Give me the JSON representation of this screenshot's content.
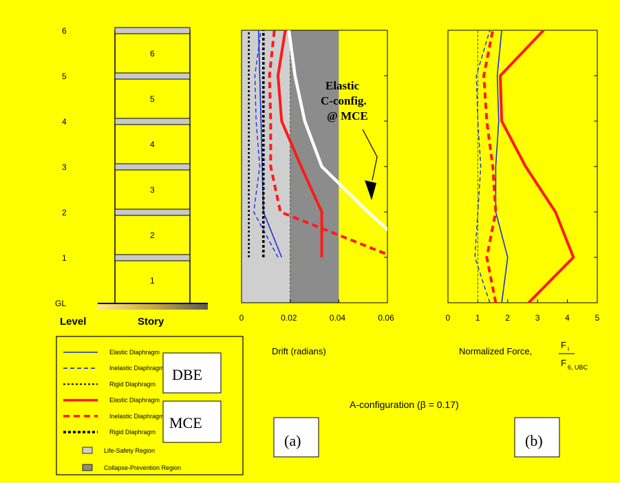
{
  "figure": {
    "caption": "A-configuration (β = 0.17)",
    "panel_a_label": "(a)",
    "panel_b_label": "(b)",
    "annotation": [
      "Elastic",
      "C-config.",
      "@ MCE"
    ]
  },
  "building": {
    "level_labels": [
      "GL",
      "1",
      "2",
      "3",
      "4",
      "5",
      "6"
    ],
    "story_labels": [
      "1",
      "2",
      "3",
      "4",
      "5",
      "6"
    ],
    "level_header": "Level",
    "story_header": "Story"
  },
  "legend": {
    "items": [
      {
        "label": "Elastic Diaphragm",
        "color": "#1b2fd6",
        "style": "solid",
        "thin": true
      },
      {
        "label": "Inelastic Diaphragm",
        "color": "#1b2fd6",
        "style": "dashed",
        "thin": true
      },
      {
        "label": "Rigid Diaphragm",
        "color": "#000000",
        "style": "dotted",
        "thin": true
      },
      {
        "label": "Elastic Diaphragm",
        "color": "#ff1a1a",
        "style": "solid",
        "thin": false
      },
      {
        "label": "Inelastic Diaphragm",
        "color": "#ff1a1a",
        "style": "dashed",
        "thin": false
      },
      {
        "label": "Rigid Diaphragm",
        "color": "#000000",
        "style": "dotted",
        "thin": false
      }
    ],
    "regions": [
      {
        "label": "Life-Safety Region",
        "color": "#cfcfcf"
      },
      {
        "label": "Collapse-Prevention Region",
        "color": "#8c8c8c"
      }
    ],
    "group_labels": [
      "DBE",
      "MCE"
    ]
  },
  "colors": {
    "background": "#ffff00",
    "dbe": "#1b2fd6",
    "mce": "#ff1a1a",
    "rigid": "#000000",
    "elastic_c_config": "#ffffff",
    "life_safety": "#cfcfcf",
    "collapse_prevention": "#8c8c8c"
  },
  "chart_data": [
    {
      "type": "line",
      "xlabel": "Drift (radians)",
      "ylabel": "Level",
      "xlim": [
        0,
        0.06
      ],
      "ylim": [
        0,
        6
      ],
      "xticks": [
        0,
        0.02,
        0.04,
        0.06
      ],
      "xtick_labels": [
        "0",
        "0.02",
        "0.04",
        "0.06"
      ],
      "regions": [
        {
          "name": "Life-Safety Region",
          "x_range": [
            0,
            0.02
          ]
        },
        {
          "name": "Collapse-Prevention Region",
          "x_range": [
            0.02,
            0.04
          ]
        }
      ],
      "series": [
        {
          "name": "DBE Elastic Diaphragm",
          "x": [
            0.0165,
            0.009,
            0.0085,
            0.008,
            0.0075,
            0.007
          ],
          "y": [
            1,
            2,
            3,
            4,
            5,
            6
          ]
        },
        {
          "name": "DBE Inelastic Diaphragm",
          "x": [
            0.015,
            0.005,
            0.0075,
            0.006,
            0.0055,
            0.008
          ],
          "y": [
            1,
            2,
            3,
            4,
            5,
            6
          ]
        },
        {
          "name": "DBE Rigid Diaphragm",
          "x": [
            0.003,
            0.003,
            0.003,
            0.003,
            0.003,
            0.003
          ],
          "y": [
            1,
            2,
            3,
            4,
            5,
            6
          ]
        },
        {
          "name": "MCE Elastic Diaphragm",
          "x": [
            0.033,
            0.033,
            0.0245,
            0.0165,
            0.015,
            0.018
          ],
          "y": [
            1,
            2,
            3,
            4,
            5,
            6
          ]
        },
        {
          "name": "MCE Inelastic Diaphragm",
          "x": [
            0.063,
            0.016,
            0.012,
            0.012,
            0.0115,
            0.0135
          ],
          "y": [
            1,
            2,
            3,
            4,
            5,
            6
          ]
        },
        {
          "name": "MCE Rigid Diaphragm",
          "x": [
            0.009,
            0.009,
            0.009,
            0.009,
            0.009,
            0.009
          ],
          "y": [
            1,
            2,
            3,
            4,
            5,
            6
          ]
        },
        {
          "name": "Elastic C-config. @ MCE",
          "x": [
            0.073,
            0.052,
            0.033,
            0.026,
            0.022,
            0.0195
          ],
          "y": [
            1,
            2,
            3,
            4,
            5,
            6
          ]
        }
      ]
    },
    {
      "type": "line",
      "xlabel": "Normalized Force,",
      "xlabel_fraction": {
        "numerator": "F",
        "numerator_sub": "i",
        "denominator": "F",
        "denominator_sub": "6, UBC"
      },
      "ylabel": "Level",
      "xlim": [
        0,
        5
      ],
      "ylim": [
        0,
        6
      ],
      "xticks": [
        0,
        1,
        2,
        3,
        4,
        5
      ],
      "xtick_labels": [
        "0",
        "1",
        "2",
        "3",
        "4",
        "5"
      ],
      "reference_x": 1,
      "series": [
        {
          "name": "DBE Elastic Diaphragm",
          "x": [
            1.8,
            2.0,
            1.6,
            1.6,
            1.7,
            1.65,
            1.8
          ],
          "y": [
            0,
            1,
            2,
            3,
            4,
            5,
            6
          ]
        },
        {
          "name": "DBE Inelastic Diaphragm",
          "x": [
            1.4,
            0.9,
            1.0,
            1.1,
            1.0,
            0.95,
            1.4
          ],
          "y": [
            0,
            1,
            2,
            3,
            4,
            5,
            6
          ]
        },
        {
          "name": "MCE Elastic Diaphragm",
          "x": [
            2.7,
            4.2,
            3.6,
            2.6,
            1.8,
            1.75,
            3.2
          ],
          "y": [
            0,
            1,
            2,
            3,
            4,
            5,
            6
          ]
        },
        {
          "name": "MCE Inelastic Diaphragm",
          "x": [
            1.6,
            1.3,
            1.6,
            1.5,
            1.3,
            1.2,
            1.5
          ],
          "y": [
            0,
            1,
            2,
            3,
            4,
            5,
            6
          ]
        }
      ]
    }
  ]
}
